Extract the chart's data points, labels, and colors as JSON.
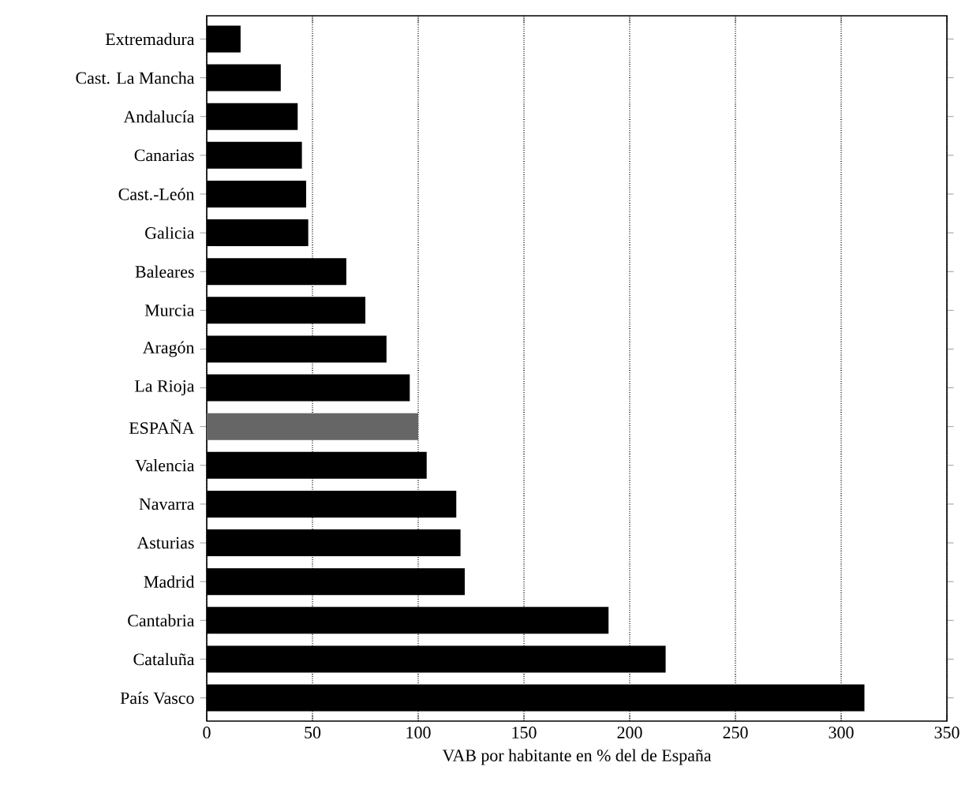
{
  "chart_data": {
    "type": "bar",
    "orientation": "horizontal",
    "xlabel": "VAB por habitante en % del de España",
    "categories": [
      "Extremadura",
      "Cast. La Mancha",
      "Andalucía",
      "Canarias",
      "Cast.-León",
      "Galicia",
      "Baleares",
      "Murcia",
      "Aragón",
      "La Rioja",
      "ESPAÑA",
      "Valencia",
      "Navarra",
      "Asturias",
      "Madrid",
      "Cantabria",
      "Cataluña",
      "País Vasco"
    ],
    "values": [
      16,
      35,
      43,
      45,
      47,
      48,
      66,
      75,
      85,
      96,
      100,
      104,
      118,
      120,
      122,
      190,
      217,
      311
    ],
    "colors": [
      "#000000",
      "#000000",
      "#000000",
      "#000000",
      "#000000",
      "#000000",
      "#000000",
      "#000000",
      "#000000",
      "#000000",
      "#666666",
      "#000000",
      "#000000",
      "#000000",
      "#000000",
      "#000000",
      "#000000",
      "#000000"
    ],
    "xlim": [
      0,
      350
    ],
    "xticks": [
      0,
      50,
      100,
      150,
      200,
      250,
      300,
      350
    ],
    "grid": "x"
  }
}
